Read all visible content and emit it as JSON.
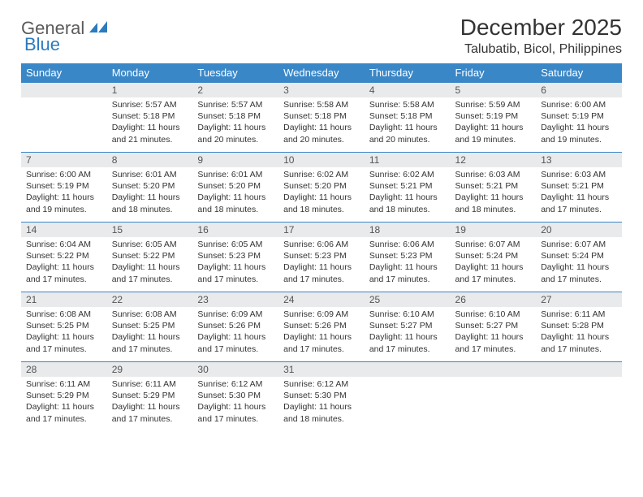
{
  "logo": {
    "word1": "General",
    "word2": "Blue",
    "icon_color": "#2b7bbf"
  },
  "title": "December 2025",
  "location": "Talubatib, Bicol, Philippines",
  "colors": {
    "header_bg": "#3a87c7",
    "header_text": "#ffffff",
    "daynum_bg": "#e9eaeb",
    "border": "#3a87c7",
    "text": "#333333",
    "page_bg": "#ffffff"
  },
  "day_headers": [
    "Sunday",
    "Monday",
    "Tuesday",
    "Wednesday",
    "Thursday",
    "Friday",
    "Saturday"
  ],
  "weeks": [
    [
      {
        "n": "",
        "lines": []
      },
      {
        "n": "1",
        "lines": [
          "Sunrise: 5:57 AM",
          "Sunset: 5:18 PM",
          "Daylight: 11 hours and 21 minutes."
        ]
      },
      {
        "n": "2",
        "lines": [
          "Sunrise: 5:57 AM",
          "Sunset: 5:18 PM",
          "Daylight: 11 hours and 20 minutes."
        ]
      },
      {
        "n": "3",
        "lines": [
          "Sunrise: 5:58 AM",
          "Sunset: 5:18 PM",
          "Daylight: 11 hours and 20 minutes."
        ]
      },
      {
        "n": "4",
        "lines": [
          "Sunrise: 5:58 AM",
          "Sunset: 5:18 PM",
          "Daylight: 11 hours and 20 minutes."
        ]
      },
      {
        "n": "5",
        "lines": [
          "Sunrise: 5:59 AM",
          "Sunset: 5:19 PM",
          "Daylight: 11 hours and 19 minutes."
        ]
      },
      {
        "n": "6",
        "lines": [
          "Sunrise: 6:00 AM",
          "Sunset: 5:19 PM",
          "Daylight: 11 hours and 19 minutes."
        ]
      }
    ],
    [
      {
        "n": "7",
        "lines": [
          "Sunrise: 6:00 AM",
          "Sunset: 5:19 PM",
          "Daylight: 11 hours and 19 minutes."
        ]
      },
      {
        "n": "8",
        "lines": [
          "Sunrise: 6:01 AM",
          "Sunset: 5:20 PM",
          "Daylight: 11 hours and 18 minutes."
        ]
      },
      {
        "n": "9",
        "lines": [
          "Sunrise: 6:01 AM",
          "Sunset: 5:20 PM",
          "Daylight: 11 hours and 18 minutes."
        ]
      },
      {
        "n": "10",
        "lines": [
          "Sunrise: 6:02 AM",
          "Sunset: 5:20 PM",
          "Daylight: 11 hours and 18 minutes."
        ]
      },
      {
        "n": "11",
        "lines": [
          "Sunrise: 6:02 AM",
          "Sunset: 5:21 PM",
          "Daylight: 11 hours and 18 minutes."
        ]
      },
      {
        "n": "12",
        "lines": [
          "Sunrise: 6:03 AM",
          "Sunset: 5:21 PM",
          "Daylight: 11 hours and 18 minutes."
        ]
      },
      {
        "n": "13",
        "lines": [
          "Sunrise: 6:03 AM",
          "Sunset: 5:21 PM",
          "Daylight: 11 hours and 17 minutes."
        ]
      }
    ],
    [
      {
        "n": "14",
        "lines": [
          "Sunrise: 6:04 AM",
          "Sunset: 5:22 PM",
          "Daylight: 11 hours and 17 minutes."
        ]
      },
      {
        "n": "15",
        "lines": [
          "Sunrise: 6:05 AM",
          "Sunset: 5:22 PM",
          "Daylight: 11 hours and 17 minutes."
        ]
      },
      {
        "n": "16",
        "lines": [
          "Sunrise: 6:05 AM",
          "Sunset: 5:23 PM",
          "Daylight: 11 hours and 17 minutes."
        ]
      },
      {
        "n": "17",
        "lines": [
          "Sunrise: 6:06 AM",
          "Sunset: 5:23 PM",
          "Daylight: 11 hours and 17 minutes."
        ]
      },
      {
        "n": "18",
        "lines": [
          "Sunrise: 6:06 AM",
          "Sunset: 5:23 PM",
          "Daylight: 11 hours and 17 minutes."
        ]
      },
      {
        "n": "19",
        "lines": [
          "Sunrise: 6:07 AM",
          "Sunset: 5:24 PM",
          "Daylight: 11 hours and 17 minutes."
        ]
      },
      {
        "n": "20",
        "lines": [
          "Sunrise: 6:07 AM",
          "Sunset: 5:24 PM",
          "Daylight: 11 hours and 17 minutes."
        ]
      }
    ],
    [
      {
        "n": "21",
        "lines": [
          "Sunrise: 6:08 AM",
          "Sunset: 5:25 PM",
          "Daylight: 11 hours and 17 minutes."
        ]
      },
      {
        "n": "22",
        "lines": [
          "Sunrise: 6:08 AM",
          "Sunset: 5:25 PM",
          "Daylight: 11 hours and 17 minutes."
        ]
      },
      {
        "n": "23",
        "lines": [
          "Sunrise: 6:09 AM",
          "Sunset: 5:26 PM",
          "Daylight: 11 hours and 17 minutes."
        ]
      },
      {
        "n": "24",
        "lines": [
          "Sunrise: 6:09 AM",
          "Sunset: 5:26 PM",
          "Daylight: 11 hours and 17 minutes."
        ]
      },
      {
        "n": "25",
        "lines": [
          "Sunrise: 6:10 AM",
          "Sunset: 5:27 PM",
          "Daylight: 11 hours and 17 minutes."
        ]
      },
      {
        "n": "26",
        "lines": [
          "Sunrise: 6:10 AM",
          "Sunset: 5:27 PM",
          "Daylight: 11 hours and 17 minutes."
        ]
      },
      {
        "n": "27",
        "lines": [
          "Sunrise: 6:11 AM",
          "Sunset: 5:28 PM",
          "Daylight: 11 hours and 17 minutes."
        ]
      }
    ],
    [
      {
        "n": "28",
        "lines": [
          "Sunrise: 6:11 AM",
          "Sunset: 5:29 PM",
          "Daylight: 11 hours and 17 minutes."
        ]
      },
      {
        "n": "29",
        "lines": [
          "Sunrise: 6:11 AM",
          "Sunset: 5:29 PM",
          "Daylight: 11 hours and 17 minutes."
        ]
      },
      {
        "n": "30",
        "lines": [
          "Sunrise: 6:12 AM",
          "Sunset: 5:30 PM",
          "Daylight: 11 hours and 17 minutes."
        ]
      },
      {
        "n": "31",
        "lines": [
          "Sunrise: 6:12 AM",
          "Sunset: 5:30 PM",
          "Daylight: 11 hours and 18 minutes."
        ]
      },
      {
        "n": "",
        "lines": []
      },
      {
        "n": "",
        "lines": []
      },
      {
        "n": "",
        "lines": []
      }
    ]
  ]
}
